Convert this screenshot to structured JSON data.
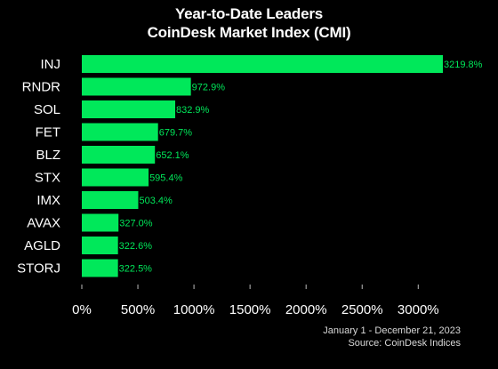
{
  "title": "Year-to-Date Leaders",
  "subtitle": "CoinDesk Market Index (CMI)",
  "footnote_date": "January 1 - December 21, 2023",
  "footnote_source": "Source: CoinDesk Indices",
  "colors": {
    "background": "#000000",
    "bar": "#00e85a",
    "label": "#00e85a",
    "text": "#ffffff",
    "axis": "#bbbbbb"
  },
  "chart_data": {
    "type": "bar",
    "orientation": "horizontal",
    "title": "Year-to-Date Leaders",
    "subtitle": "CoinDesk Market Index (CMI)",
    "xlabel": "",
    "ylabel": "",
    "categories": [
      "INJ",
      "RNDR",
      "SOL",
      "FET",
      "BLZ",
      "STX",
      "IMX",
      "AVAX",
      "AGLD",
      "STORJ"
    ],
    "values": [
      3219.8,
      972.9,
      832.9,
      679.7,
      652.1,
      595.4,
      503.4,
      327.0,
      322.6,
      322.5
    ],
    "value_labels": [
      "3219.8%",
      "972.9%",
      "832.9%",
      "679.7%",
      "652.1%",
      "595.4%",
      "503.4%",
      "327.0%",
      "322.6%",
      "322.5%"
    ],
    "xticks": [
      0,
      500,
      1000,
      1500,
      2000,
      2500,
      3000
    ],
    "xtick_labels": [
      "0%",
      "500%",
      "1000%",
      "1500%",
      "2000%",
      "2500%",
      "3000%"
    ],
    "xlim": [
      0,
      3219.8
    ],
    "grid": false,
    "legend": "none"
  }
}
